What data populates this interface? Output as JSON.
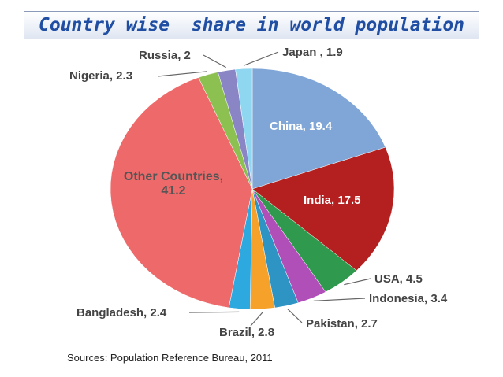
{
  "chart_data": {
    "type": "pie",
    "title": "Country wise  share in world population",
    "source": "Sources: Population Reference Bureau, 2011",
    "categories": [
      "China, 19.4",
      "India, 17.5",
      "USA, 4.5",
      "Indonesia, 3.4",
      "Pakistan, 2.7",
      "Brazil, 2.8",
      "Bangladesh, 2.4",
      "Other Countries, 41.2",
      "Nigeria, 2.3",
      "Russia, 2",
      "Japan , 1.9"
    ],
    "values": [
      19.4,
      17.5,
      4.5,
      3.4,
      2.7,
      2.8,
      2.4,
      41.2,
      2.3,
      2,
      1.9
    ],
    "colors": [
      "#7fa6d6",
      "#b3201f",
      "#2f9a4e",
      "#b04fb8",
      "#2d94c4",
      "#f5a12a",
      "#2ea9e0",
      "#ee6a6a",
      "#8cc152",
      "#8a86c6",
      "#8fd6f0"
    ]
  }
}
